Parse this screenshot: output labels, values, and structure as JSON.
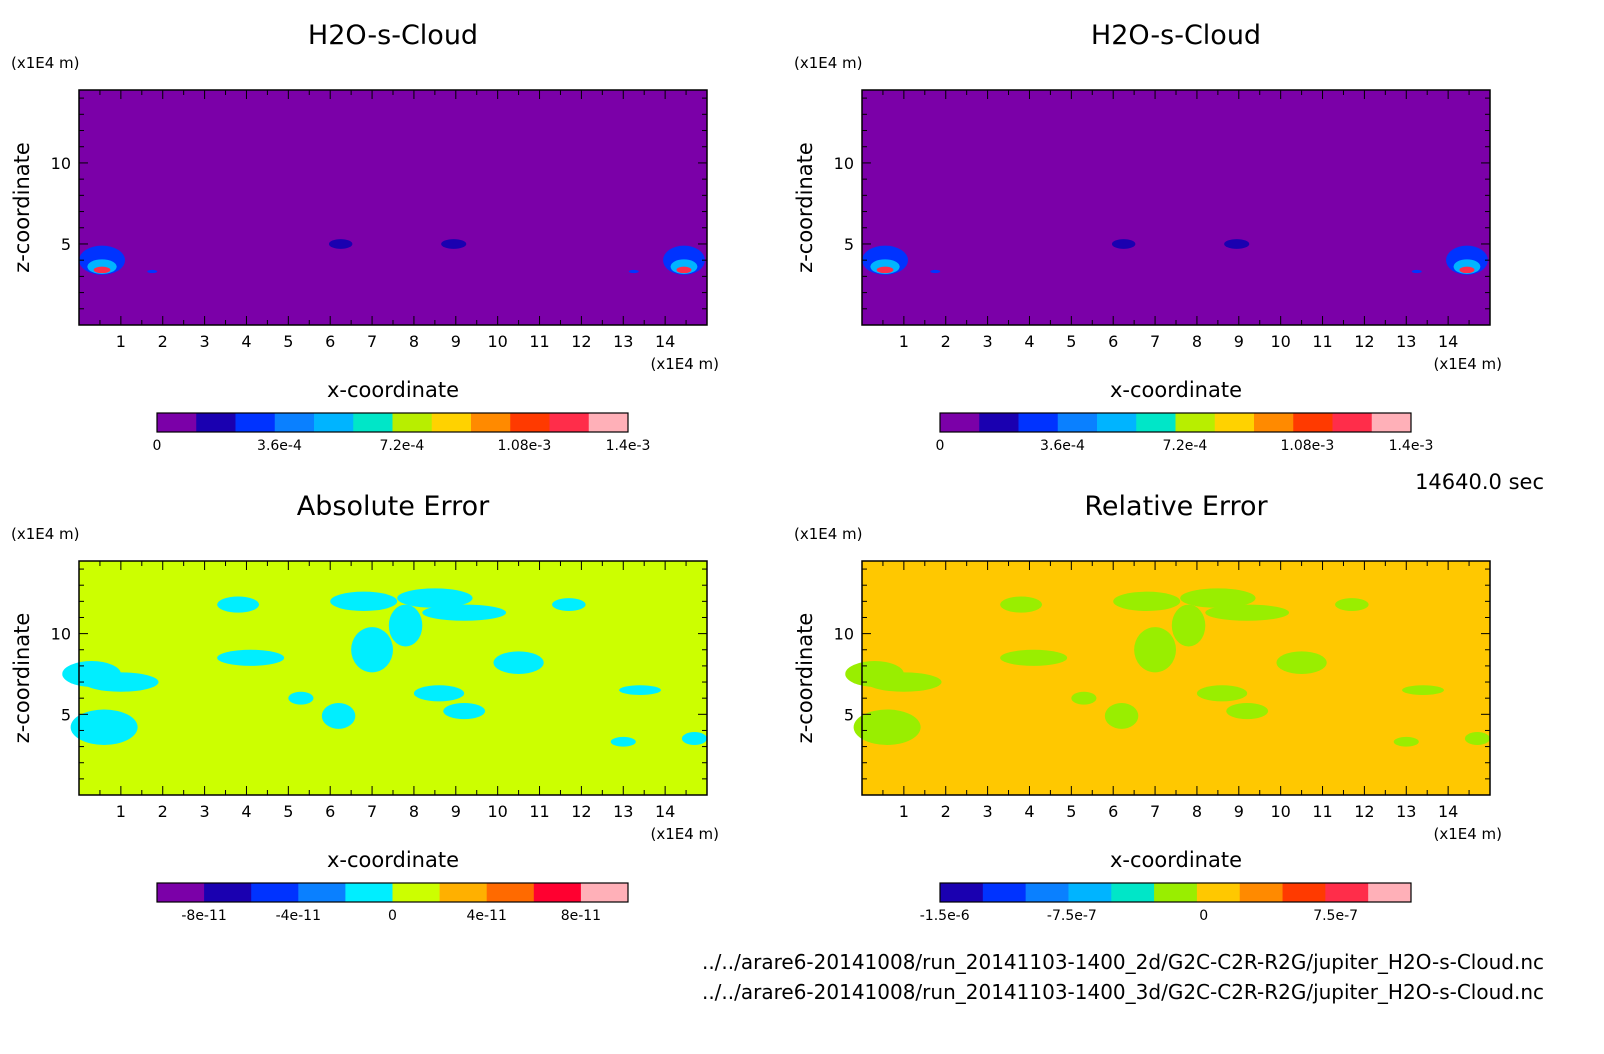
{
  "chart_data": [
    {
      "type": "heatmap",
      "title": "H2O-s-Cloud",
      "xlabel": "x-coordinate",
      "ylabel": "z-coordinate",
      "x_unit": "(x1E4 m)",
      "z_unit": "(x1E4 m)",
      "xlim": [
        0,
        15
      ],
      "ylim": [
        0,
        14.5
      ],
      "x_ticks": [
        "1",
        "2",
        "3",
        "4",
        "5",
        "6",
        "7",
        "8",
        "9",
        "10",
        "11",
        "12",
        "13",
        "14"
      ],
      "y_ticks": [
        "5",
        "10"
      ],
      "colorbar": {
        "ticks": [
          "0",
          "3.6e-4",
          "7.2e-4",
          "1.08e-3",
          "1.4e-3"
        ],
        "colors": [
          "#7b00a8",
          "#1a00b0",
          "#0033ff",
          "#0a80ff",
          "#00b4ff",
          "#00e6c8",
          "#b8ee00",
          "#ffd200",
          "#ff8a00",
          "#ff3a00",
          "#ff2d4a",
          "#ffb0b8"
        ]
      },
      "background": "#7b00a8"
    },
    {
      "type": "heatmap",
      "title": "H2O-s-Cloud",
      "xlabel": "x-coordinate",
      "ylabel": "z-coordinate",
      "x_unit": "(x1E4 m)",
      "z_unit": "(x1E4 m)",
      "xlim": [
        0,
        15
      ],
      "ylim": [
        0,
        14.5
      ],
      "x_ticks": [
        "1",
        "2",
        "3",
        "4",
        "5",
        "6",
        "7",
        "8",
        "9",
        "10",
        "11",
        "12",
        "13",
        "14"
      ],
      "y_ticks": [
        "5",
        "10"
      ],
      "colorbar": {
        "ticks": [
          "0",
          "3.6e-4",
          "7.2e-4",
          "1.08e-3",
          "1.4e-3"
        ],
        "colors": [
          "#7b00a8",
          "#1a00b0",
          "#0033ff",
          "#0a80ff",
          "#00b4ff",
          "#00e6c8",
          "#b8ee00",
          "#ffd200",
          "#ff8a00",
          "#ff3a00",
          "#ff2d4a",
          "#ffb0b8"
        ]
      },
      "background": "#7b00a8"
    },
    {
      "type": "heatmap",
      "title": "Absolute Error",
      "xlabel": "x-coordinate",
      "ylabel": "z-coordinate",
      "x_unit": "(x1E4 m)",
      "z_unit": "(x1E4 m)",
      "xlim": [
        0,
        15
      ],
      "ylim": [
        0,
        14.5
      ],
      "x_ticks": [
        "1",
        "2",
        "3",
        "4",
        "5",
        "6",
        "7",
        "8",
        "9",
        "10",
        "11",
        "12",
        "13",
        "14"
      ],
      "y_ticks": [
        "5",
        "10"
      ],
      "colorbar": {
        "ticks": [
          "-8e-11",
          "-4e-11",
          "0",
          "4e-11",
          "8e-11"
        ],
        "colors": [
          "#7b00a8",
          "#1a00b0",
          "#0033ff",
          "#0a80ff",
          "#00eeff",
          "#ccff00",
          "#ffb000",
          "#ff6a00",
          "#ff0030",
          "#ffb0b8"
        ]
      },
      "background": "#ccff00"
    },
    {
      "type": "heatmap",
      "title": "Relative Error",
      "xlabel": "x-coordinate",
      "ylabel": "z-coordinate",
      "x_unit": "(x1E4 m)",
      "z_unit": "(x1E4 m)",
      "xlim": [
        0,
        15
      ],
      "ylim": [
        0,
        14.5
      ],
      "x_ticks": [
        "1",
        "2",
        "3",
        "4",
        "5",
        "6",
        "7",
        "8",
        "9",
        "10",
        "11",
        "12",
        "13",
        "14"
      ],
      "y_ticks": [
        "5",
        "10"
      ],
      "colorbar": {
        "ticks": [
          "-1.5e-6",
          "-7.5e-7",
          "0",
          "7.5e-7"
        ],
        "colors": [
          "#1a00b0",
          "#0033ff",
          "#0a80ff",
          "#00b4ff",
          "#00e6c8",
          "#99ee00",
          "#ffc800",
          "#ff8a00",
          "#ff3a00",
          "#ff2d4a",
          "#ffb0b8"
        ]
      },
      "background": "#ffc800"
    }
  ],
  "time_label": "14640.0 sec",
  "file_paths": [
    "../../arare6-20141008/run_20141103-1400_2d/G2C-C2R-R2G/jupiter_H2O-s-Cloud.nc",
    "../../arare6-20141008/run_20141103-1400_3d/G2C-C2R-R2G/jupiter_H2O-s-Cloud.nc"
  ]
}
